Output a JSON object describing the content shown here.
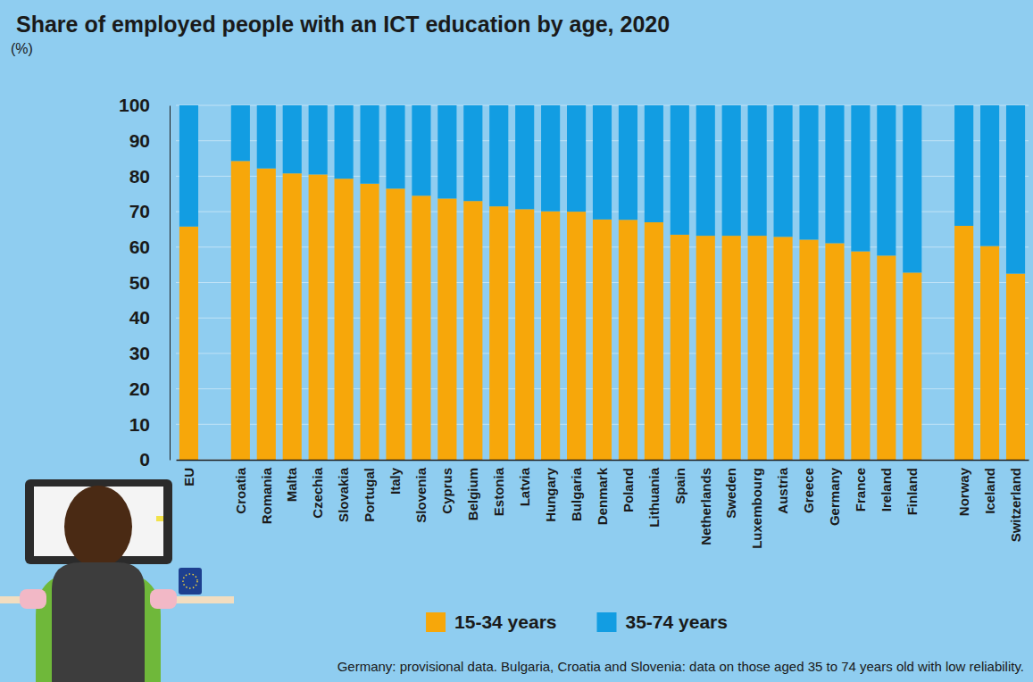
{
  "chart_data": {
    "type": "bar",
    "title": "Share of employed people with an ICT education by age, 2020",
    "ylabel": "(%)",
    "categories": [
      "EU",
      null,
      "Croatia",
      "Romania",
      "Malta",
      "Czechia",
      "Slovakia",
      "Portugal",
      "Italy",
      "Slovenia",
      "Cyprus",
      "Belgium",
      "Estonia",
      "Latvia",
      "Hungary",
      "Bulgaria",
      "Denmark",
      "Poland",
      "Lithuania",
      "Spain",
      "Netherlands",
      "Sweden",
      "Luxembourg",
      "Austria",
      "Greece",
      "Germany",
      "France",
      "Ireland",
      "Finland",
      null,
      "Norway",
      "Iceland",
      "Switzerland"
    ],
    "series": [
      {
        "name": "15-34 years",
        "color": "#f7a70a",
        "values": [
          65.8,
          null,
          84.3,
          82.2,
          80.8,
          80.5,
          79.3,
          77.9,
          76.5,
          74.5,
          73.7,
          73.0,
          71.5,
          70.7,
          70.1,
          70.0,
          67.8,
          67.7,
          67.0,
          63.5,
          63.2,
          63.2,
          63.2,
          62.9,
          62.1,
          61.1,
          58.8,
          57.6,
          52.8,
          null,
          66.0,
          60.3,
          52.5
        ]
      },
      {
        "name": "35-74 years",
        "color": "#129de2",
        "values": [
          34.2,
          null,
          15.7,
          17.8,
          19.2,
          19.5,
          20.7,
          22.1,
          23.5,
          25.5,
          26.3,
          27.0,
          28.5,
          29.3,
          29.9,
          30.0,
          32.2,
          32.3,
          33.0,
          36.5,
          36.8,
          36.8,
          36.8,
          37.1,
          37.9,
          38.9,
          41.2,
          42.4,
          47.2,
          null,
          34.0,
          39.7,
          47.5
        ]
      }
    ],
    "ylim": [
      0,
      100
    ],
    "yticks": [
      0,
      10,
      20,
      30,
      40,
      50,
      60,
      70,
      80,
      90,
      100
    ],
    "stacked": true,
    "grid": true,
    "legend": "bottom",
    "annotations": [
      "Germany: provisional data. Bulgaria, Croatia and Slovenia: data on those aged 35 to 74 years old with low reliability."
    ]
  }
}
